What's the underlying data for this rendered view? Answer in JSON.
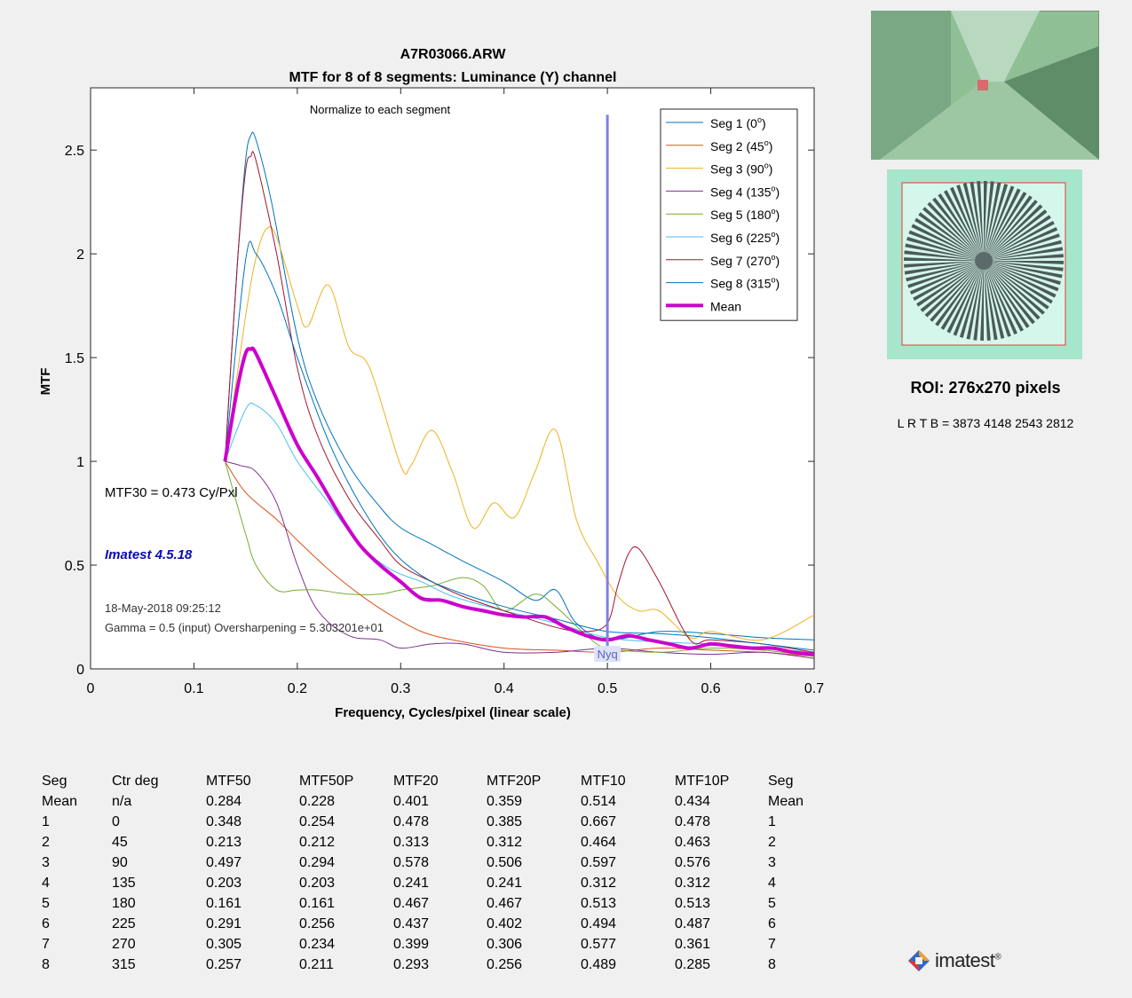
{
  "chart_data": {
    "type": "line",
    "title": "A7R03066.ARW",
    "subtitle": "MTF for 8 of 8 segments:  Luminance (Y) channel",
    "xlabel": "Frequency, Cycles/pixel (linear scale)",
    "ylabel": "MTF",
    "xlim": [
      0,
      0.7
    ],
    "ylim": [
      0,
      2.8
    ],
    "xticks": [
      "0",
      "0.1",
      "0.2",
      "0.3",
      "0.4",
      "0.5",
      "0.6",
      "0.7"
    ],
    "yticks": [
      "0",
      "0.5",
      "1",
      "1.5",
      "2",
      "2.5"
    ],
    "grid": false,
    "legend_position": "top-right",
    "normalize_note": "Normalize to each segment",
    "nyquist": {
      "x": 0.5,
      "y_top": 2.67,
      "label": "Nyq"
    },
    "annotations": {
      "mtf30": "MTF30 = 0.473 Cy/Pxl",
      "version": "Imatest 4.5.18",
      "date": "18-May-2018 09:25:12",
      "gamma": "Gamma = 0.5 (input)  Oversharpening = 5.303201e+01"
    },
    "series": [
      {
        "name": "Seg 1 (0",
        "color": "#0072bd",
        "width": 1,
        "x": [
          0.13,
          0.142,
          0.15,
          0.155,
          0.16,
          0.175,
          0.2,
          0.22,
          0.25,
          0.28,
          0.3,
          0.33,
          0.36,
          0.4,
          0.43,
          0.45,
          0.47,
          0.5,
          0.55,
          0.6,
          0.65,
          0.7
        ],
        "y": [
          1.0,
          1.95,
          2.45,
          2.57,
          2.55,
          2.25,
          1.6,
          1.28,
          0.98,
          0.78,
          0.68,
          0.6,
          0.52,
          0.42,
          0.33,
          0.38,
          0.22,
          0.14,
          0.18,
          0.17,
          0.15,
          0.14
        ]
      },
      {
        "name": "Seg 2 (45",
        "color": "#d95319",
        "width": 1,
        "x": [
          0.13,
          0.15,
          0.18,
          0.2,
          0.23,
          0.26,
          0.29,
          0.32,
          0.35,
          0.4,
          0.45,
          0.5,
          0.55,
          0.6,
          0.65,
          0.7
        ],
        "y": [
          1.0,
          0.85,
          0.72,
          0.62,
          0.48,
          0.36,
          0.26,
          0.18,
          0.14,
          0.1,
          0.09,
          0.08,
          0.1,
          0.09,
          0.08,
          0.06
        ]
      },
      {
        "name": "Seg 3 (90",
        "color": "#edb120",
        "width": 1,
        "x": [
          0.13,
          0.15,
          0.16,
          0.17,
          0.18,
          0.2,
          0.21,
          0.23,
          0.25,
          0.27,
          0.3,
          0.31,
          0.33,
          0.35,
          0.37,
          0.39,
          0.41,
          0.43,
          0.45,
          0.47,
          0.49,
          0.51,
          0.53,
          0.55,
          0.58,
          0.6,
          0.65,
          0.7
        ],
        "y": [
          1.0,
          1.7,
          1.98,
          2.12,
          2.08,
          1.75,
          1.65,
          1.85,
          1.55,
          1.45,
          0.98,
          0.98,
          1.15,
          0.95,
          0.68,
          0.8,
          0.73,
          0.95,
          1.15,
          0.72,
          0.52,
          0.35,
          0.28,
          0.28,
          0.15,
          0.18,
          0.14,
          0.26
        ]
      },
      {
        "name": "Seg 4 (135",
        "color": "#7e2f8e",
        "width": 1,
        "x": [
          0.13,
          0.145,
          0.16,
          0.18,
          0.2,
          0.22,
          0.25,
          0.28,
          0.3,
          0.33,
          0.36,
          0.4,
          0.45,
          0.5,
          0.55,
          0.6,
          0.65,
          0.7
        ],
        "y": [
          1.0,
          0.98,
          0.95,
          0.8,
          0.5,
          0.28,
          0.16,
          0.14,
          0.1,
          0.12,
          0.12,
          0.08,
          0.08,
          0.1,
          0.08,
          0.07,
          0.08,
          0.05
        ]
      },
      {
        "name": "Seg 5 (180",
        "color": "#77ac30",
        "width": 1,
        "x": [
          0.13,
          0.15,
          0.16,
          0.18,
          0.2,
          0.22,
          0.25,
          0.28,
          0.3,
          0.33,
          0.36,
          0.38,
          0.4,
          0.43,
          0.45,
          0.48,
          0.5,
          0.55,
          0.6,
          0.65,
          0.7
        ],
        "y": [
          1.0,
          0.65,
          0.5,
          0.38,
          0.38,
          0.38,
          0.36,
          0.36,
          0.38,
          0.4,
          0.44,
          0.4,
          0.28,
          0.36,
          0.3,
          0.16,
          0.1,
          0.08,
          0.1,
          0.09,
          0.06
        ]
      },
      {
        "name": "Seg 6 (225",
        "color": "#4dbeee",
        "width": 1,
        "x": [
          0.13,
          0.15,
          0.16,
          0.18,
          0.2,
          0.23,
          0.26,
          0.29,
          0.32,
          0.35,
          0.4,
          0.45,
          0.5,
          0.55,
          0.6,
          0.65,
          0.7
        ],
        "y": [
          1.0,
          1.25,
          1.27,
          1.18,
          1.0,
          0.8,
          0.6,
          0.48,
          0.42,
          0.35,
          0.28,
          0.22,
          0.15,
          0.13,
          0.12,
          0.1,
          0.08
        ]
      },
      {
        "name": "Seg 7 (270",
        "color": "#a2142f",
        "width": 1,
        "x": [
          0.13,
          0.142,
          0.15,
          0.155,
          0.16,
          0.18,
          0.2,
          0.22,
          0.25,
          0.28,
          0.3,
          0.33,
          0.36,
          0.4,
          0.45,
          0.48,
          0.5,
          0.51,
          0.52,
          0.53,
          0.55,
          0.58,
          0.6,
          0.65,
          0.7
        ],
        "y": [
          1.0,
          1.95,
          2.4,
          2.47,
          2.45,
          2.0,
          1.45,
          1.12,
          0.82,
          0.62,
          0.5,
          0.42,
          0.35,
          0.28,
          0.2,
          0.18,
          0.22,
          0.4,
          0.55,
          0.58,
          0.42,
          0.14,
          0.14,
          0.12,
          0.08
        ]
      },
      {
        "name": "Seg 8 (315",
        "color": "#0072bd",
        "width": 1,
        "x": [
          0.13,
          0.15,
          0.16,
          0.18,
          0.2,
          0.23,
          0.26,
          0.29,
          0.32,
          0.35,
          0.4,
          0.45,
          0.5,
          0.55,
          0.6,
          0.65,
          0.7
        ],
        "y": [
          1.0,
          1.97,
          2.0,
          1.8,
          1.5,
          1.1,
          0.8,
          0.58,
          0.45,
          0.38,
          0.3,
          0.24,
          0.18,
          0.17,
          0.15,
          0.12,
          0.09
        ]
      },
      {
        "name": "Mean",
        "color": "#cc00cc",
        "width": 4,
        "x": [
          0.13,
          0.142,
          0.15,
          0.155,
          0.16,
          0.18,
          0.2,
          0.22,
          0.24,
          0.26,
          0.28,
          0.3,
          0.32,
          0.34,
          0.36,
          0.38,
          0.4,
          0.42,
          0.44,
          0.46,
          0.48,
          0.5,
          0.52,
          0.54,
          0.56,
          0.58,
          0.6,
          0.62,
          0.64,
          0.66,
          0.68,
          0.7
        ],
        "y": [
          1.0,
          1.35,
          1.52,
          1.54,
          1.52,
          1.3,
          1.08,
          0.92,
          0.75,
          0.6,
          0.5,
          0.42,
          0.34,
          0.33,
          0.3,
          0.28,
          0.26,
          0.25,
          0.25,
          0.2,
          0.16,
          0.14,
          0.16,
          0.14,
          0.12,
          0.1,
          0.12,
          0.11,
          0.1,
          0.1,
          0.08,
          0.07
        ]
      }
    ]
  },
  "roi": {
    "label": "ROI:  276x270 pixels",
    "lrtb": "L R   T B = 3873 4148  2543 2812"
  },
  "table": {
    "headers": [
      "Seg",
      "Ctr deg",
      "MTF50",
      "MTF50P",
      "MTF20",
      "MTF20P",
      "MTF10",
      "MTF10P",
      "Seg"
    ],
    "rows": [
      [
        "Mean",
        "n/a",
        "0.284",
        "0.228",
        "0.401",
        "0.359",
        "0.514",
        "0.434",
        "Mean"
      ],
      [
        "1",
        "0",
        "0.348",
        "0.254",
        "0.478",
        "0.385",
        "0.667",
        "0.478",
        "1"
      ],
      [
        "2",
        "45",
        "0.213",
        "0.212",
        "0.313",
        "0.312",
        "0.464",
        "0.463",
        "2"
      ],
      [
        "3",
        "90",
        "0.497",
        "0.294",
        "0.578",
        "0.506",
        "0.597",
        "0.576",
        "3"
      ],
      [
        "4",
        "135",
        "0.203",
        "0.203",
        "0.241",
        "0.241",
        "0.312",
        "0.312",
        "4"
      ],
      [
        "5",
        "180",
        "0.161",
        "0.161",
        "0.467",
        "0.467",
        "0.513",
        "0.513",
        "5"
      ],
      [
        "6",
        "225",
        "0.291",
        "0.256",
        "0.437",
        "0.402",
        "0.494",
        "0.487",
        "6"
      ],
      [
        "7",
        "270",
        "0.305",
        "0.234",
        "0.399",
        "0.306",
        "0.577",
        "0.361",
        "7"
      ],
      [
        "8",
        "315",
        "0.257",
        "0.211",
        "0.293",
        "0.256",
        "0.489",
        "0.285",
        "8"
      ]
    ]
  },
  "logo": {
    "text": "imatest",
    "reg": "®"
  }
}
